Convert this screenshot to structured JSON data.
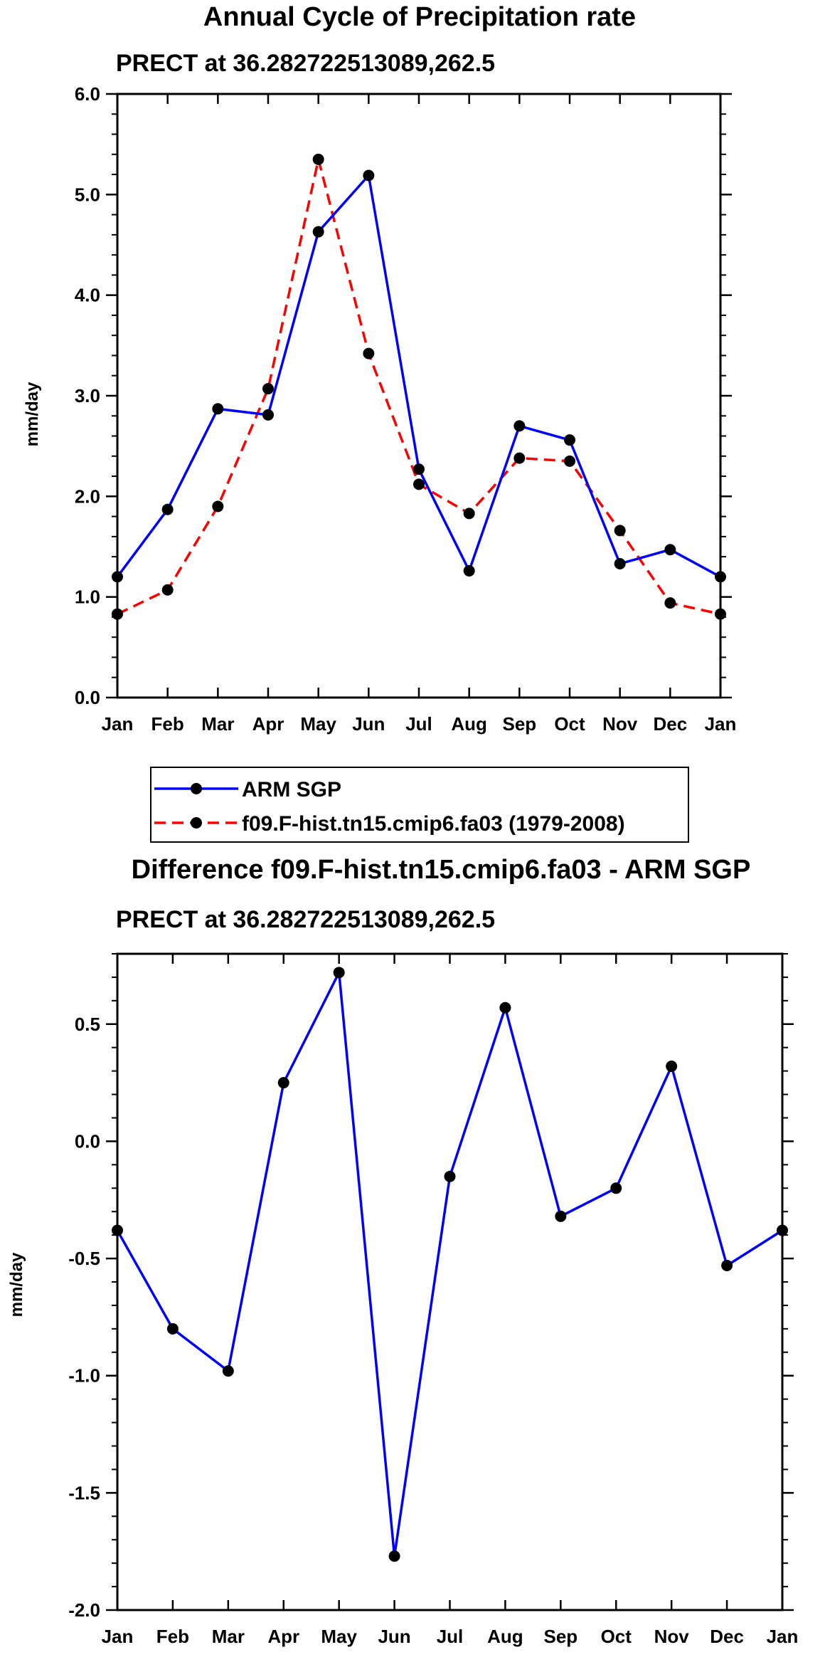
{
  "chart_data": [
    {
      "type": "line",
      "title": "Annual Cycle of Precipitation rate",
      "subtitle": "PRECT at 36.282722513089,262.5",
      "xlabel": "",
      "ylabel": "mm/day",
      "categories": [
        "Jan",
        "Feb",
        "Mar",
        "Apr",
        "May",
        "Jun",
        "Jul",
        "Aug",
        "Sep",
        "Oct",
        "Nov",
        "Dec",
        "Jan"
      ],
      "ylim": [
        0,
        6
      ],
      "yticks": [
        0,
        1,
        2,
        3,
        4,
        5,
        6
      ],
      "ytick_labels": [
        "0.0",
        "1.0",
        "2.0",
        "3.0",
        "4.0",
        "5.0",
        "6.0"
      ],
      "legend_position": "below",
      "series": [
        {
          "name": "ARM SGP",
          "color": "#0000ff",
          "dash": "solid",
          "values": [
            1.2,
            1.87,
            2.87,
            2.81,
            4.63,
            5.19,
            2.27,
            1.26,
            2.7,
            2.56,
            1.33,
            1.47,
            1.2
          ]
        },
        {
          "name": "f09.F-hist.tn15.cmip6.fa03 (1979-2008)",
          "color": "#ff0000",
          "dash": "dashed",
          "values": [
            0.83,
            1.07,
            1.9,
            3.07,
            5.35,
            3.42,
            2.12,
            1.83,
            2.38,
            2.35,
            1.66,
            0.94,
            0.83
          ]
        }
      ]
    },
    {
      "type": "line",
      "title": "Difference f09.F-hist.tn15.cmip6.fa03 - ARM SGP",
      "subtitle": "PRECT at 36.282722513089,262.5",
      "xlabel": "",
      "ylabel": "mm/day",
      "categories": [
        "Jan",
        "Feb",
        "Mar",
        "Apr",
        "May",
        "Jun",
        "Jul",
        "Aug",
        "Sep",
        "Oct",
        "Nov",
        "Dec",
        "Jan"
      ],
      "ylim": [
        -2.0,
        0.8
      ],
      "yticks": [
        -2.0,
        -1.5,
        -1.0,
        -0.5,
        0.0,
        0.5
      ],
      "ytick_labels": [
        "-2.0",
        "-1.5",
        "-1.0",
        "-0.5",
        "0.0",
        "0.5"
      ],
      "series": [
        {
          "name": "Difference",
          "color": "#0000ff",
          "dash": "solid",
          "values": [
            -0.38,
            -0.8,
            -0.98,
            0.25,
            0.72,
            -1.77,
            -0.15,
            0.57,
            -0.32,
            -0.2,
            0.32,
            -0.53,
            -0.38
          ]
        }
      ]
    }
  ]
}
